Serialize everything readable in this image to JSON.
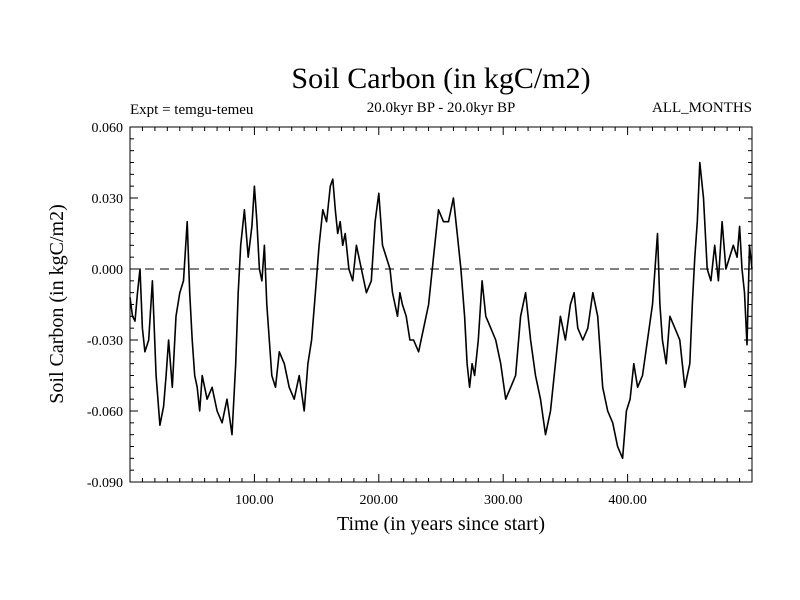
{
  "chart_data": {
    "type": "line",
    "title": "Soil Carbon (in kgC/m2)",
    "subtitle": "20.0kyr BP - 20.0kyr BP",
    "left_label": "Expt = temgu-temeu",
    "right_label": "ALL_MONTHS",
    "xlabel": "Time (in years since start)",
    "ylabel": "Soil Carbon (in kgC/m2)",
    "xlim": [
      0,
      500
    ],
    "ylim": [
      -0.09,
      0.06
    ],
    "xticks": [
      100,
      200,
      300,
      400
    ],
    "xtick_labels": [
      "100.00",
      "200.00",
      "300.00",
      "400.00"
    ],
    "yticks": [
      -0.09,
      -0.06,
      -0.03,
      0.0,
      0.03,
      0.06
    ],
    "ytick_labels": [
      "-0.090",
      "-0.060",
      "-0.030",
      "0.000",
      "0.030",
      "0.060"
    ],
    "reference_line": 0.0,
    "series": [
      {
        "name": "Soil Carbon",
        "x": [
          0,
          2,
          4,
          6,
          8,
          10,
          12,
          15,
          18,
          21,
          24,
          27,
          29,
          31,
          34,
          37,
          40,
          43,
          46,
          48,
          50,
          52,
          54,
          56,
          58,
          62,
          66,
          70,
          74,
          78,
          82,
          85,
          87,
          89,
          92,
          95,
          98,
          100,
          102,
          104,
          106,
          108,
          110,
          112,
          114,
          117,
          120,
          124,
          128,
          132,
          136,
          140,
          143,
          146,
          149,
          152,
          155,
          158,
          161,
          163,
          165,
          167,
          169,
          171,
          173,
          176,
          179,
          182,
          186,
          190,
          194,
          197,
          200,
          203,
          206,
          209,
          211,
          213,
          215,
          217,
          219,
          222,
          225,
          228,
          232,
          236,
          240,
          244,
          248,
          252,
          256,
          260,
          263,
          266,
          269,
          271,
          273,
          275,
          277,
          280,
          283,
          286,
          290,
          294,
          298,
          302,
          306,
          310,
          314,
          318,
          322,
          326,
          330,
          334,
          338,
          342,
          346,
          350,
          354,
          357,
          360,
          364,
          368,
          372,
          376,
          380,
          384,
          388,
          392,
          396,
          399,
          402,
          405,
          408,
          412,
          416,
          420,
          422,
          424,
          426,
          428,
          431,
          434,
          438,
          442,
          446,
          450,
          452,
          454,
          456,
          458,
          461,
          464,
          467,
          470,
          473,
          476,
          479,
          482,
          485,
          488,
          490,
          492,
          494,
          496,
          498,
          500
        ],
        "values": [
          -0.012,
          -0.02,
          -0.022,
          -0.01,
          0.0,
          -0.025,
          -0.035,
          -0.03,
          -0.005,
          -0.045,
          -0.066,
          -0.058,
          -0.045,
          -0.03,
          -0.05,
          -0.02,
          -0.01,
          -0.005,
          0.02,
          -0.01,
          -0.03,
          -0.045,
          -0.05,
          -0.06,
          -0.045,
          -0.055,
          -0.05,
          -0.06,
          -0.065,
          -0.055,
          -0.07,
          -0.04,
          -0.01,
          0.01,
          0.025,
          0.005,
          0.018,
          0.035,
          0.02,
          0.0,
          -0.005,
          0.01,
          -0.015,
          -0.03,
          -0.045,
          -0.05,
          -0.035,
          -0.04,
          -0.05,
          -0.055,
          -0.045,
          -0.06,
          -0.04,
          -0.03,
          -0.01,
          0.01,
          0.025,
          0.02,
          0.035,
          0.038,
          0.025,
          0.015,
          0.02,
          0.01,
          0.015,
          0.0,
          -0.005,
          0.01,
          0.0,
          -0.01,
          -0.005,
          0.02,
          0.032,
          0.01,
          0.005,
          0.0,
          -0.01,
          -0.015,
          -0.02,
          -0.01,
          -0.015,
          -0.02,
          -0.03,
          -0.03,
          -0.035,
          -0.025,
          -0.015,
          0.005,
          0.025,
          0.02,
          0.02,
          0.03,
          0.015,
          0.0,
          -0.02,
          -0.04,
          -0.05,
          -0.04,
          -0.045,
          -0.03,
          -0.005,
          -0.02,
          -0.025,
          -0.03,
          -0.04,
          -0.055,
          -0.05,
          -0.045,
          -0.02,
          -0.01,
          -0.03,
          -0.045,
          -0.055,
          -0.07,
          -0.06,
          -0.04,
          -0.02,
          -0.03,
          -0.015,
          -0.01,
          -0.025,
          -0.03,
          -0.025,
          -0.01,
          -0.02,
          -0.05,
          -0.06,
          -0.065,
          -0.075,
          -0.08,
          -0.06,
          -0.055,
          -0.04,
          -0.05,
          -0.045,
          -0.03,
          -0.015,
          0.0,
          0.015,
          -0.015,
          -0.03,
          -0.04,
          -0.02,
          -0.025,
          -0.03,
          -0.05,
          -0.04,
          -0.015,
          0.005,
          0.02,
          0.045,
          0.03,
          0.0,
          -0.005,
          0.01,
          -0.005,
          0.02,
          0.0,
          0.005,
          0.01,
          0.005,
          0.018,
          0.0,
          -0.01,
          -0.032,
          0.01,
          0.0
        ]
      }
    ]
  }
}
